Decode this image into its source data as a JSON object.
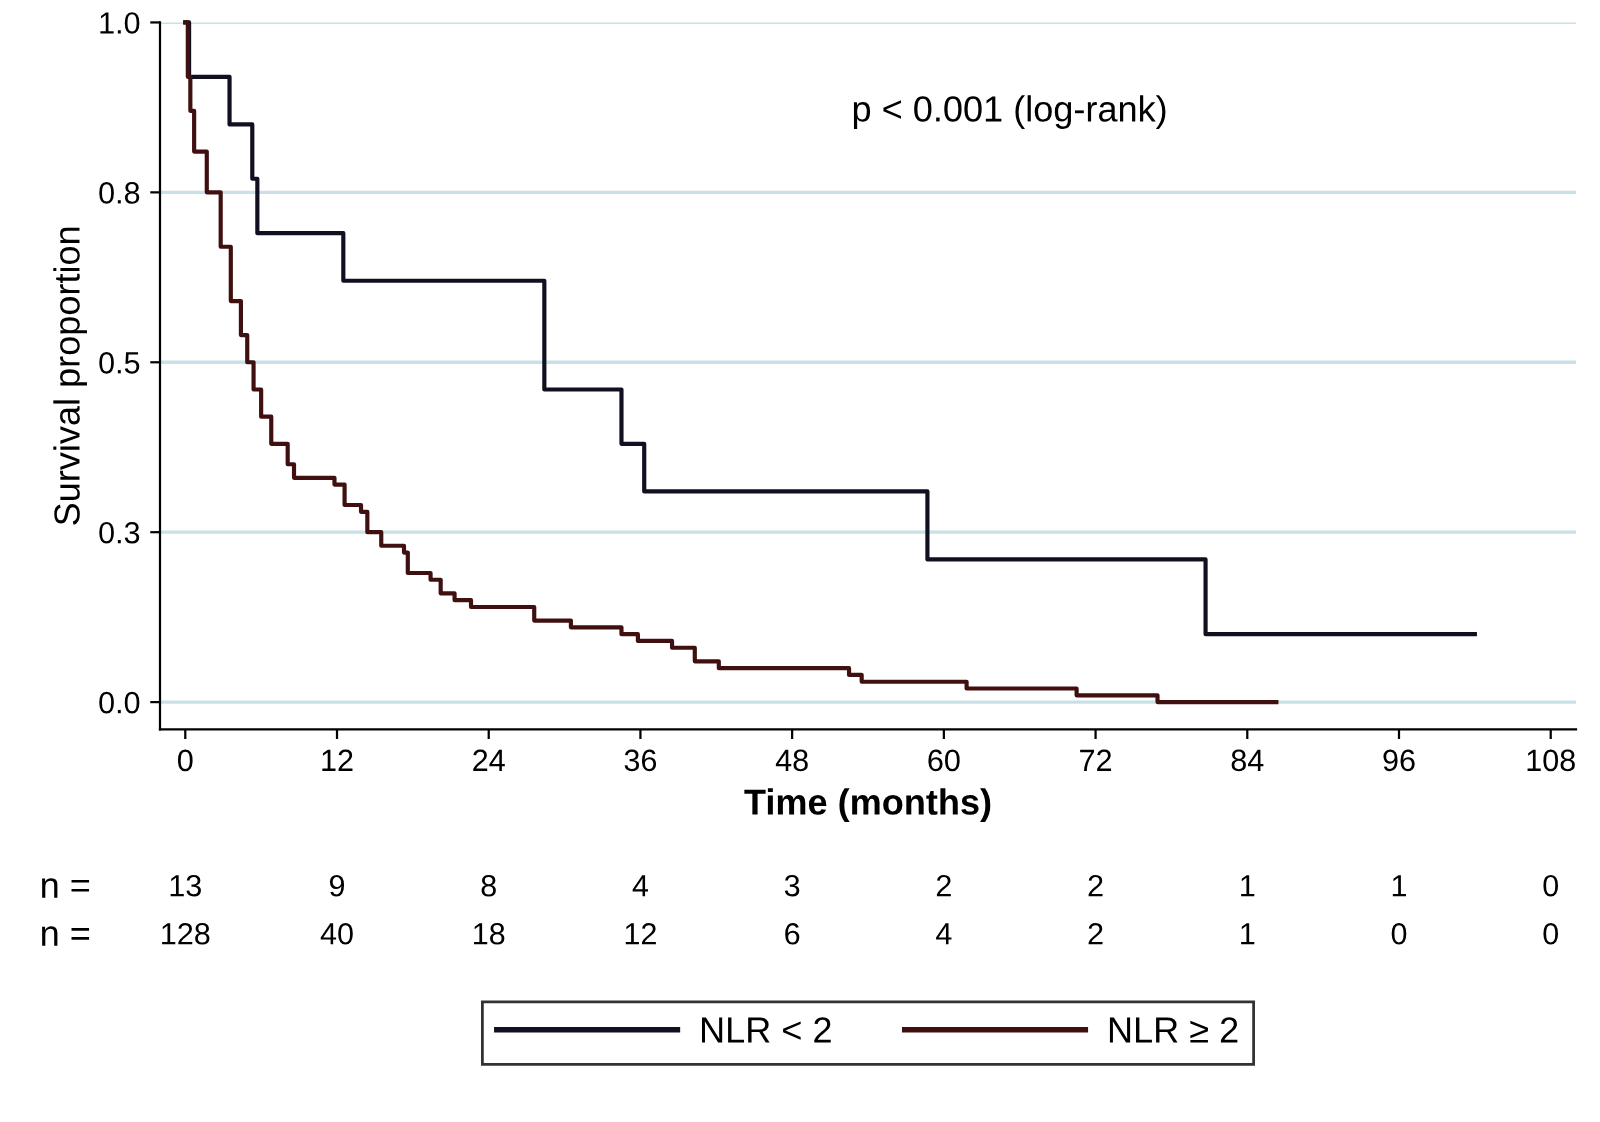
{
  "chart_data": {
    "type": "step",
    "xlabel": "Time (months)",
    "ylabel": "Survival proportion",
    "xlim": [
      -2,
      110
    ],
    "xticks": [
      0,
      12,
      24,
      36,
      48,
      60,
      72,
      84,
      96,
      108
    ],
    "ylim": [
      -0.04,
      1.0
    ],
    "yticks": [
      {
        "value": 0,
        "label": "0.0"
      },
      {
        "value": 0.25,
        "label": "0.3"
      },
      {
        "value": 0.5,
        "label": "0.5"
      },
      {
        "value": 0.75,
        "label": "0.8"
      },
      {
        "value": 1.0,
        "label": "1.0"
      }
    ],
    "grid": "y",
    "legend": "bottom",
    "marker": "none",
    "line_style": "solid",
    "series": [
      {
        "name": "NLR < 2",
        "color": "#101020",
        "x": [
          0,
          0.3,
          3.5,
          5.3,
          5.7,
          12.5,
          28.4,
          34.5,
          36.3,
          58.7,
          80.7,
          102
        ],
        "values": [
          1.0,
          0.92,
          0.85,
          0.77,
          0.69,
          0.62,
          0.46,
          0.38,
          0.31,
          0.21,
          0.1,
          0.1
        ]
      },
      {
        "name": "NLR ≥ 2",
        "color": "#401010",
        "x": [
          0,
          0.2,
          0.4,
          0.7,
          1.7,
          2.8,
          3.6,
          4.4,
          4.9,
          5.4,
          6.0,
          6.8,
          8.1,
          8.6,
          10.5,
          11.8,
          12.6,
          13.9,
          14.4,
          15.5,
          17.3,
          17.6,
          19.4,
          20.2,
          21.3,
          22.6,
          26.0,
          27.6,
          30.5,
          34.5,
          35.8,
          38.5,
          40.3,
          42.2,
          52.5,
          53.5,
          61.8,
          70.5,
          76.9,
          86.3
        ],
        "values": [
          1.0,
          0.92,
          0.87,
          0.81,
          0.75,
          0.67,
          0.59,
          0.54,
          0.5,
          0.46,
          0.42,
          0.38,
          0.35,
          0.33,
          0.33,
          0.32,
          0.29,
          0.28,
          0.25,
          0.23,
          0.22,
          0.19,
          0.18,
          0.16,
          0.15,
          0.14,
          0.14,
          0.12,
          0.11,
          0.1,
          0.09,
          0.08,
          0.06,
          0.05,
          0.04,
          0.03,
          0.02,
          0.01,
          0.0,
          0.0
        ]
      }
    ],
    "annotations": [
      "p < 0.001 (log-rank)",
      "n =",
      "13",
      "9",
      "8",
      "4",
      "3",
      "2",
      "2",
      "1",
      "1",
      "0",
      "n =",
      "128",
      "40",
      "18",
      "12",
      "6",
      "4",
      "2",
      "1",
      "0",
      "0"
    ]
  }
}
